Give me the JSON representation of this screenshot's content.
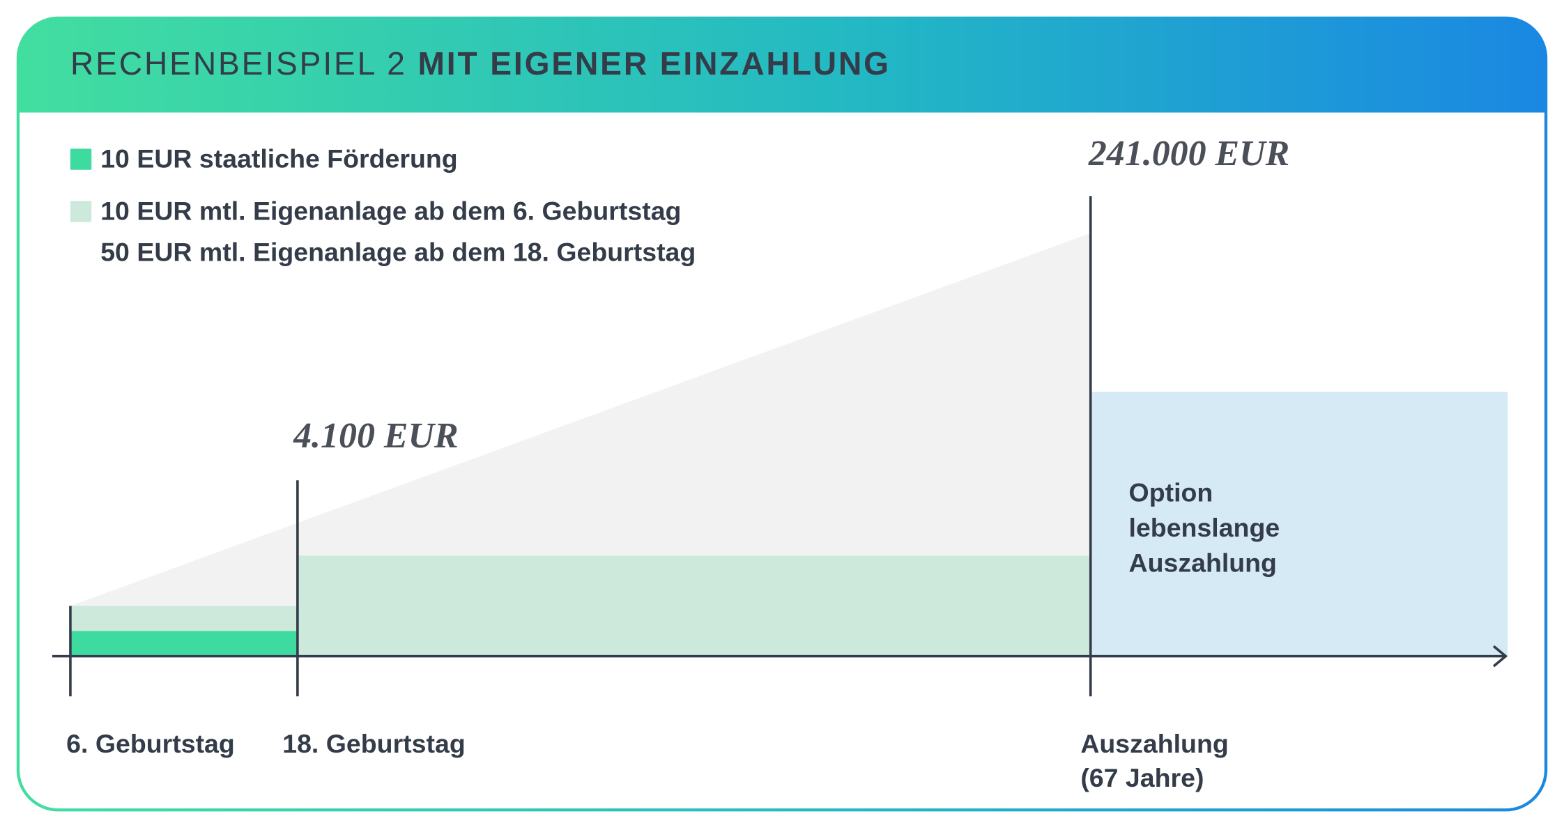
{
  "header": {
    "title_light": "RECHENBEISPIEL 2",
    "title_bold": "MIT EIGENER EINZAHLUNG"
  },
  "legend": [
    {
      "lines": [
        "10 EUR staatliche Förderung"
      ]
    },
    {
      "lines": [
        "10 EUR mtl. Eigenanlage ab dem 6. Geburtstag",
        "50 EUR mtl. Eigenanlage ab dem 18. Geburtstag"
      ]
    }
  ],
  "amounts": [
    "4.100 EUR",
    "241.000 EUR"
  ],
  "option": {
    "lines": [
      "Option",
      "lebenslange",
      "Auszahlung"
    ]
  },
  "milestones": [
    {
      "lines": [
        "6. Geburtstag"
      ]
    },
    {
      "lines": [
        "18. Geburtstag"
      ]
    },
    {
      "lines": [
        "Auszahlung",
        "(67 Jahre)"
      ]
    }
  ]
}
